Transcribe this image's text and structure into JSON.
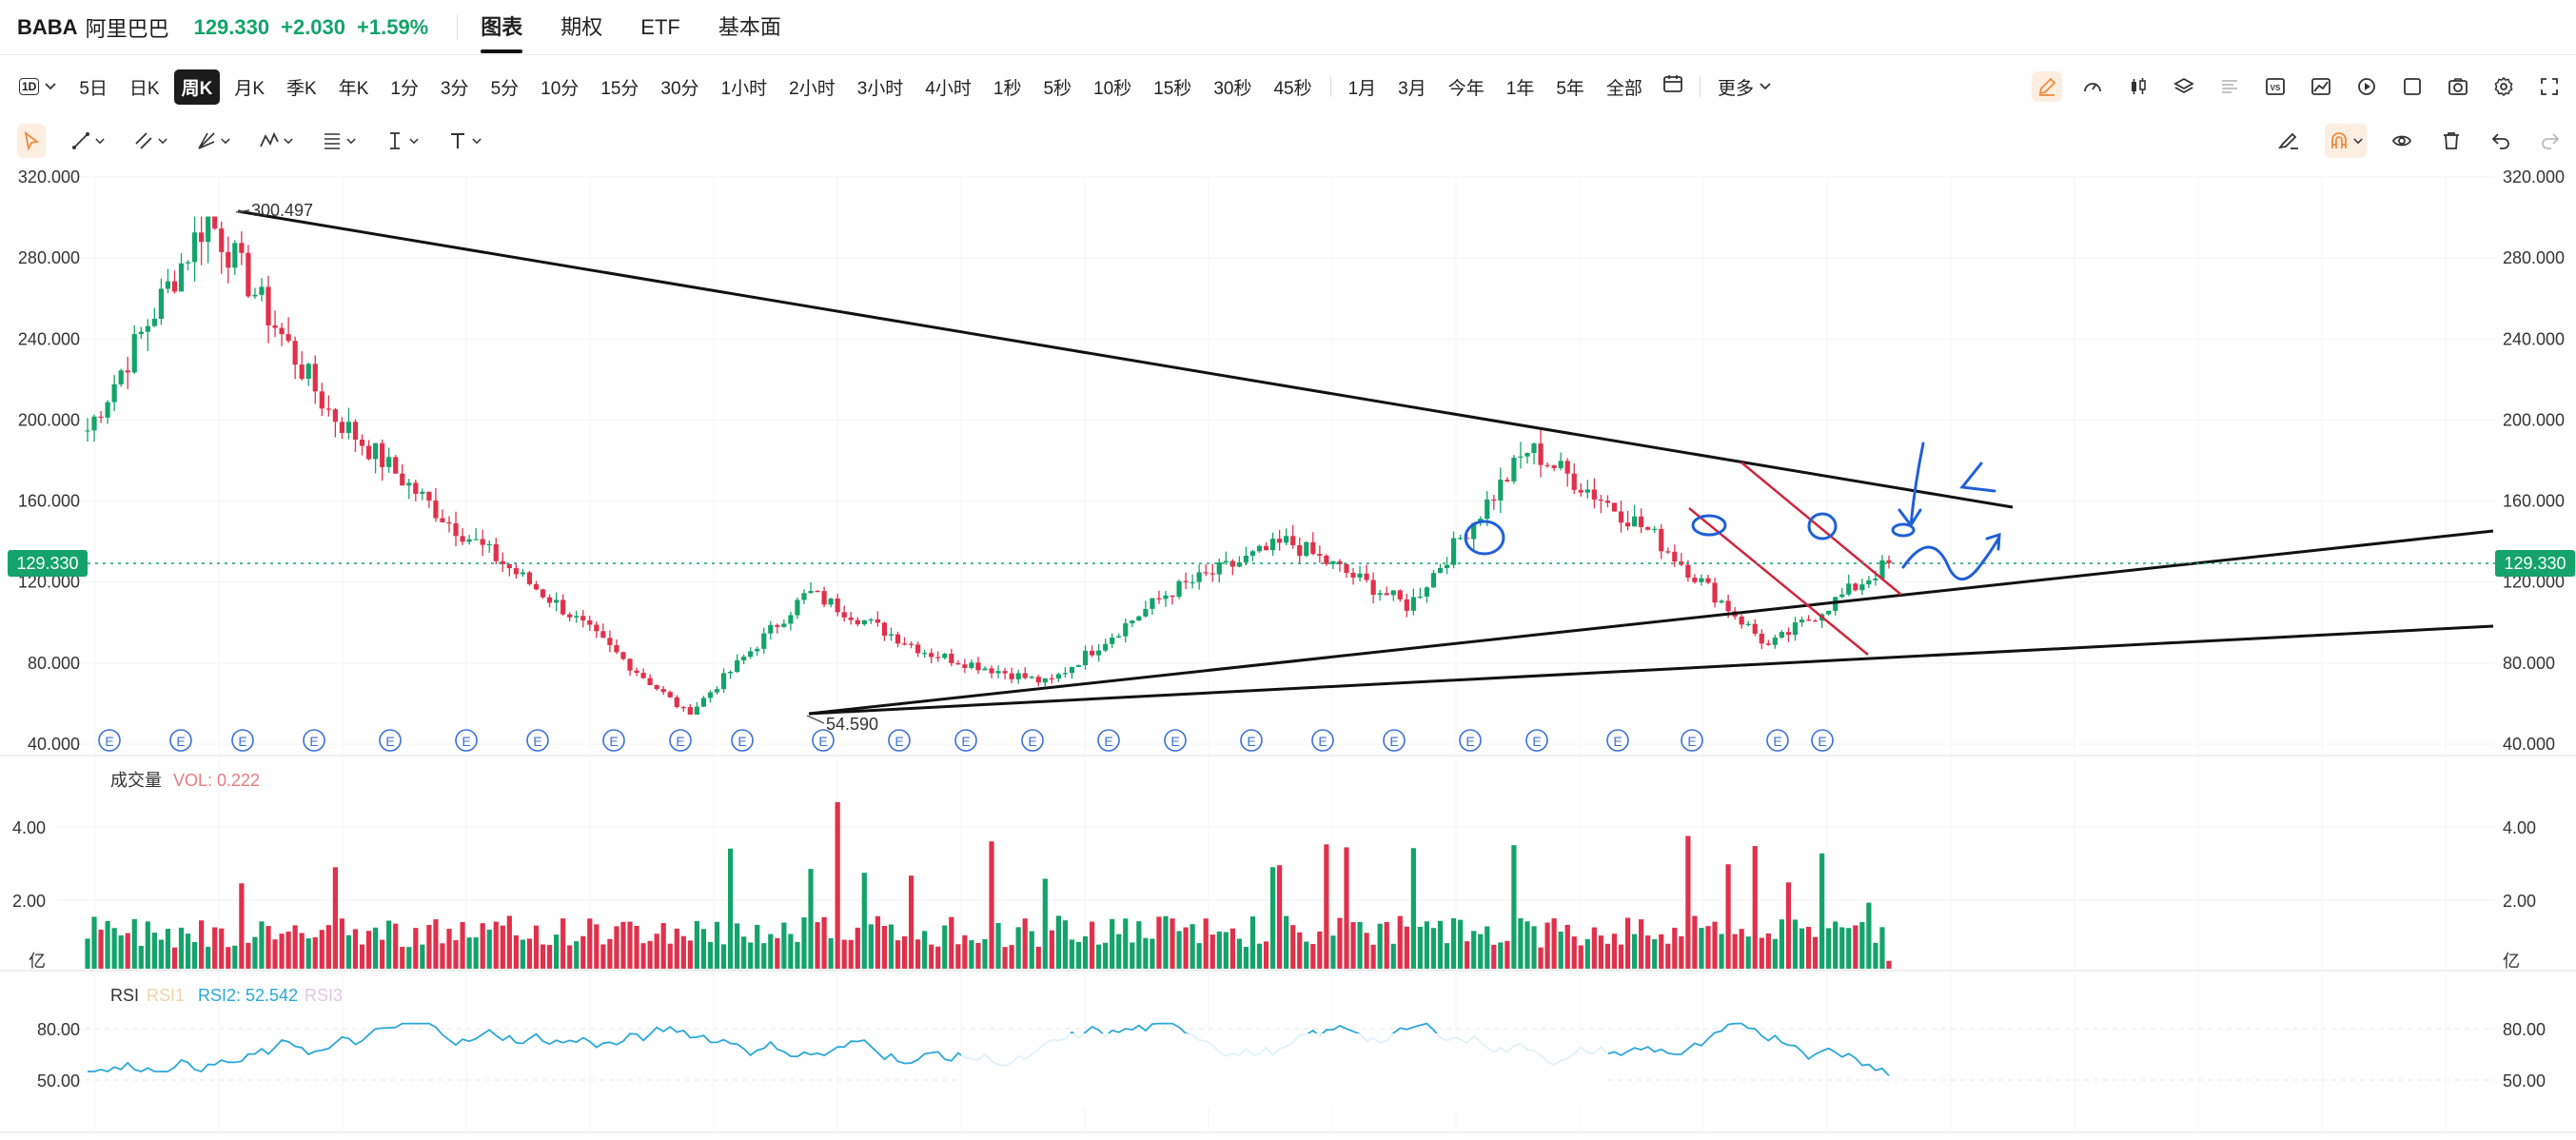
{
  "header": {
    "symbol": "BABA",
    "name": "阿里巴巴",
    "price": "129.330",
    "change": "+2.030",
    "change_pct": "+1.59%",
    "tabs": [
      {
        "label": "图表",
        "active": true
      },
      {
        "label": "期权",
        "active": false
      },
      {
        "label": "ETF",
        "active": false
      },
      {
        "label": "基本面",
        "active": false
      }
    ]
  },
  "period_bar": {
    "selector_label": "1D",
    "items": [
      {
        "label": "5日",
        "active": false
      },
      {
        "label": "日K",
        "active": false
      },
      {
        "label": "周K",
        "active": true
      },
      {
        "label": "月K",
        "active": false
      },
      {
        "label": "季K",
        "active": false
      },
      {
        "label": "年K",
        "active": false
      },
      {
        "label": "1分",
        "active": false
      },
      {
        "label": "3分",
        "active": false
      },
      {
        "label": "5分",
        "active": false
      },
      {
        "label": "10分",
        "active": false
      },
      {
        "label": "15分",
        "active": false
      },
      {
        "label": "30分",
        "active": false
      },
      {
        "label": "1小时",
        "active": false
      },
      {
        "label": "2小时",
        "active": false
      },
      {
        "label": "3小时",
        "active": false
      },
      {
        "label": "4小时",
        "active": false
      },
      {
        "label": "1秒",
        "active": false
      },
      {
        "label": "5秒",
        "active": false
      },
      {
        "label": "10秒",
        "active": false
      },
      {
        "label": "15秒",
        "active": false
      },
      {
        "label": "30秒",
        "active": false
      },
      {
        "label": "45秒",
        "active": false
      }
    ],
    "ranges": [
      "1月",
      "3月",
      "今年",
      "1年",
      "5年",
      "全部"
    ],
    "more_label": "更多",
    "accent_color": "#f08a3c"
  },
  "chart": {
    "y_axis_labels": [
      "320.000",
      "280.000",
      "240.000",
      "200.000",
      "160.000",
      "120.000",
      "80.000",
      "40.000"
    ],
    "current_price_tag": "129.330",
    "current_price_color": "#14a36b",
    "high_annotation": "300.497",
    "low_annotation": "54.590",
    "event_marker_label": "E",
    "up_color": "#14a36b",
    "down_color": "#e0314b"
  },
  "volume_pane": {
    "title": "成交量",
    "value_label": "VOL: 0.222",
    "y_axis_labels": [
      "4.00",
      "2.00"
    ],
    "unit": "亿"
  },
  "rsi_pane": {
    "title": "RSI",
    "rsi1_label": "RSI1",
    "rsi2_label": "RSI2: 52.542",
    "rsi3_label": "RSI3",
    "y_axis_labels": [
      "80.00",
      "50.00"
    ],
    "line_color": "#2aa7d8"
  },
  "chart_data": {
    "type": "candlestick",
    "symbol": "BABA",
    "interval": "weekly",
    "price_axis_range": [
      40,
      320
    ],
    "price_axis_ticks": [
      40,
      80,
      120,
      160,
      200,
      240,
      280,
      320
    ],
    "last_price": 129.33,
    "highest": 300.497,
    "lowest": 54.59,
    "approx_close_path": [
      {
        "point": "start",
        "close": 195
      },
      {
        "point": "early peak",
        "close": 300.5
      },
      {
        "point": "first drop",
        "close": 205
      },
      {
        "point": "mid decline",
        "close": 150
      },
      {
        "point": "decline",
        "close": 105
      },
      {
        "point": "low",
        "close": 54.59
      },
      {
        "point": "bounce",
        "close": 115
      },
      {
        "point": "consolidation",
        "close": 85
      },
      {
        "point": "base",
        "close": 70
      },
      {
        "point": "rally",
        "close": 115
      },
      {
        "point": "breakout",
        "close": 140
      },
      {
        "point": "pullback",
        "close": 108
      },
      {
        "point": "second peak",
        "close": 186
      },
      {
        "point": "pullback channel",
        "close": 145
      },
      {
        "point": "channel low",
        "close": 88
      },
      {
        "point": "last",
        "close": 129.33
      }
    ],
    "volume_axis_ticks": [
      2.0,
      4.0
    ],
    "volume_unit": "亿",
    "last_volume": 0.222,
    "max_volume_approx": 4.7,
    "rsi_axis_ticks": [
      50,
      80
    ],
    "last_rsi2": 52.542
  }
}
